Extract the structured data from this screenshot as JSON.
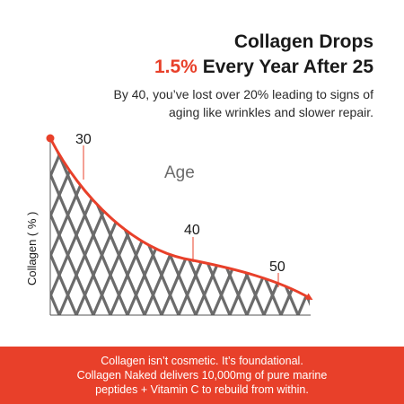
{
  "headline": {
    "line1": "Collagen Drops",
    "accent": "1.5%",
    "line2_rest": " Every Year After 25"
  },
  "subtitle": {
    "line1": "By 40, you’ve lost over 20% leading to signs of",
    "line2": "aging like wrinkles and slower repair."
  },
  "chart_data": {
    "type": "area",
    "title": "Age",
    "xlabel": "",
    "ylabel": "Collagen ( % )",
    "annotations": [
      {
        "label": "30",
        "x": 30
      },
      {
        "label": "40",
        "x": 40
      },
      {
        "label": "50",
        "x": 50
      }
    ],
    "curve_color": "#e8402a",
    "fill_color": "#6b6b6b"
  },
  "footer": {
    "line1": "Collagen isn’t cosmetic. It’s foundational.",
    "line2": "Collagen Naked delivers 10,000mg of pure marine",
    "line3": "peptides + Vitamin C to rebuild from within."
  }
}
